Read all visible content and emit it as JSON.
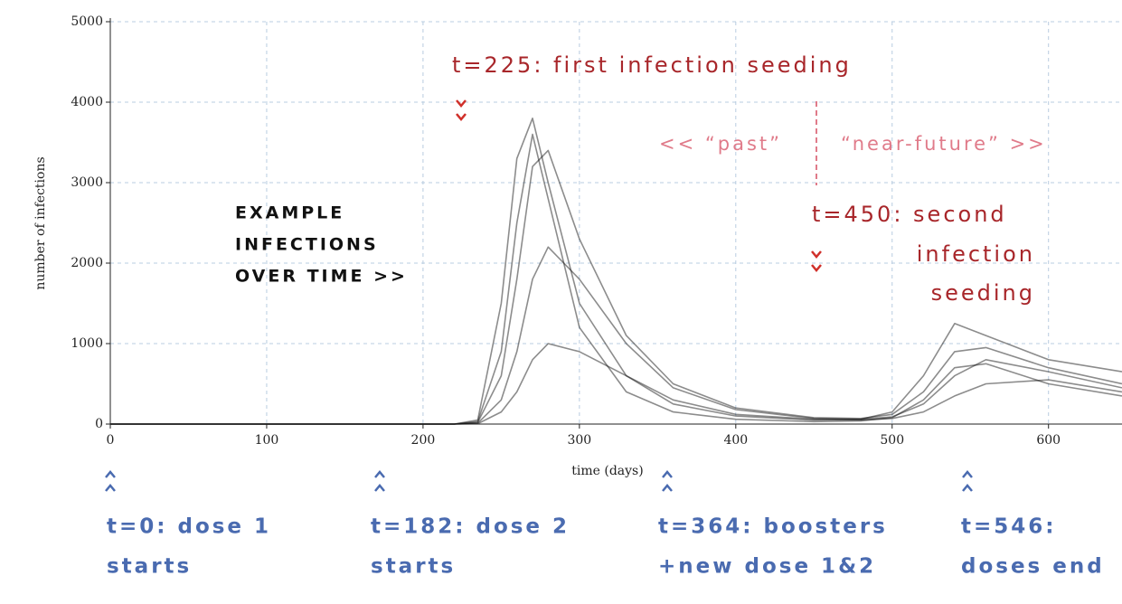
{
  "chart_data": {
    "type": "line",
    "x_label": "time (days)",
    "y_label": "number of infections",
    "xlim": [
      0,
      647
    ],
    "ylim": [
      0,
      5000
    ],
    "xticks": [
      0,
      100,
      200,
      300,
      400,
      500,
      600
    ],
    "yticks": [
      0,
      1000,
      2000,
      3000,
      4000,
      5000
    ],
    "grid": true,
    "x": [
      0,
      220,
      235,
      250,
      260,
      270,
      280,
      300,
      330,
      360,
      400,
      450,
      480,
      500,
      520,
      540,
      560,
      600,
      647
    ],
    "series": [
      {
        "color": "#000000",
        "values": [
          0,
          0,
          50,
          1500,
          3300,
          3800,
          3000,
          1500,
          600,
          250,
          100,
          50,
          60,
          150,
          600,
          1250,
          1100,
          800,
          650
        ]
      },
      {
        "color": "#000000",
        "values": [
          0,
          0,
          20,
          600,
          1800,
          3200,
          3400,
          2300,
          1100,
          500,
          200,
          80,
          70,
          120,
          400,
          900,
          950,
          700,
          500
        ]
      },
      {
        "color": "#000000",
        "values": [
          0,
          0,
          10,
          300,
          900,
          1800,
          2200,
          1800,
          1000,
          450,
          180,
          70,
          60,
          90,
          250,
          600,
          800,
          650,
          450
        ]
      },
      {
        "color": "#000000",
        "values": [
          0,
          0,
          5,
          150,
          400,
          800,
          1000,
          900,
          600,
          300,
          120,
          60,
          50,
          70,
          150,
          350,
          500,
          550,
          400
        ]
      },
      {
        "color": "#000000",
        "values": [
          0,
          0,
          30,
          900,
          2500,
          3600,
          2800,
          1200,
          400,
          150,
          60,
          30,
          40,
          80,
          300,
          700,
          750,
          500,
          350
        ]
      }
    ],
    "annotations": {
      "first_seeding": "t=225: first infection seeding",
      "past": "<< “past”",
      "near_future": "“near-future” >>",
      "second_seeding": [
        "t=450: second",
        "infection",
        "seeding"
      ],
      "example": [
        "EXAMPLE",
        "INFECTIONS",
        "OVER TIME >>"
      ],
      "dose1": [
        "t=0: dose 1",
        "starts"
      ],
      "dose2": [
        "t=182: dose 2",
        "starts"
      ],
      "boosters": [
        "t=364: boosters",
        "+new dose 1&2"
      ],
      "doses_end": [
        "t=546:",
        "doses end"
      ]
    }
  }
}
